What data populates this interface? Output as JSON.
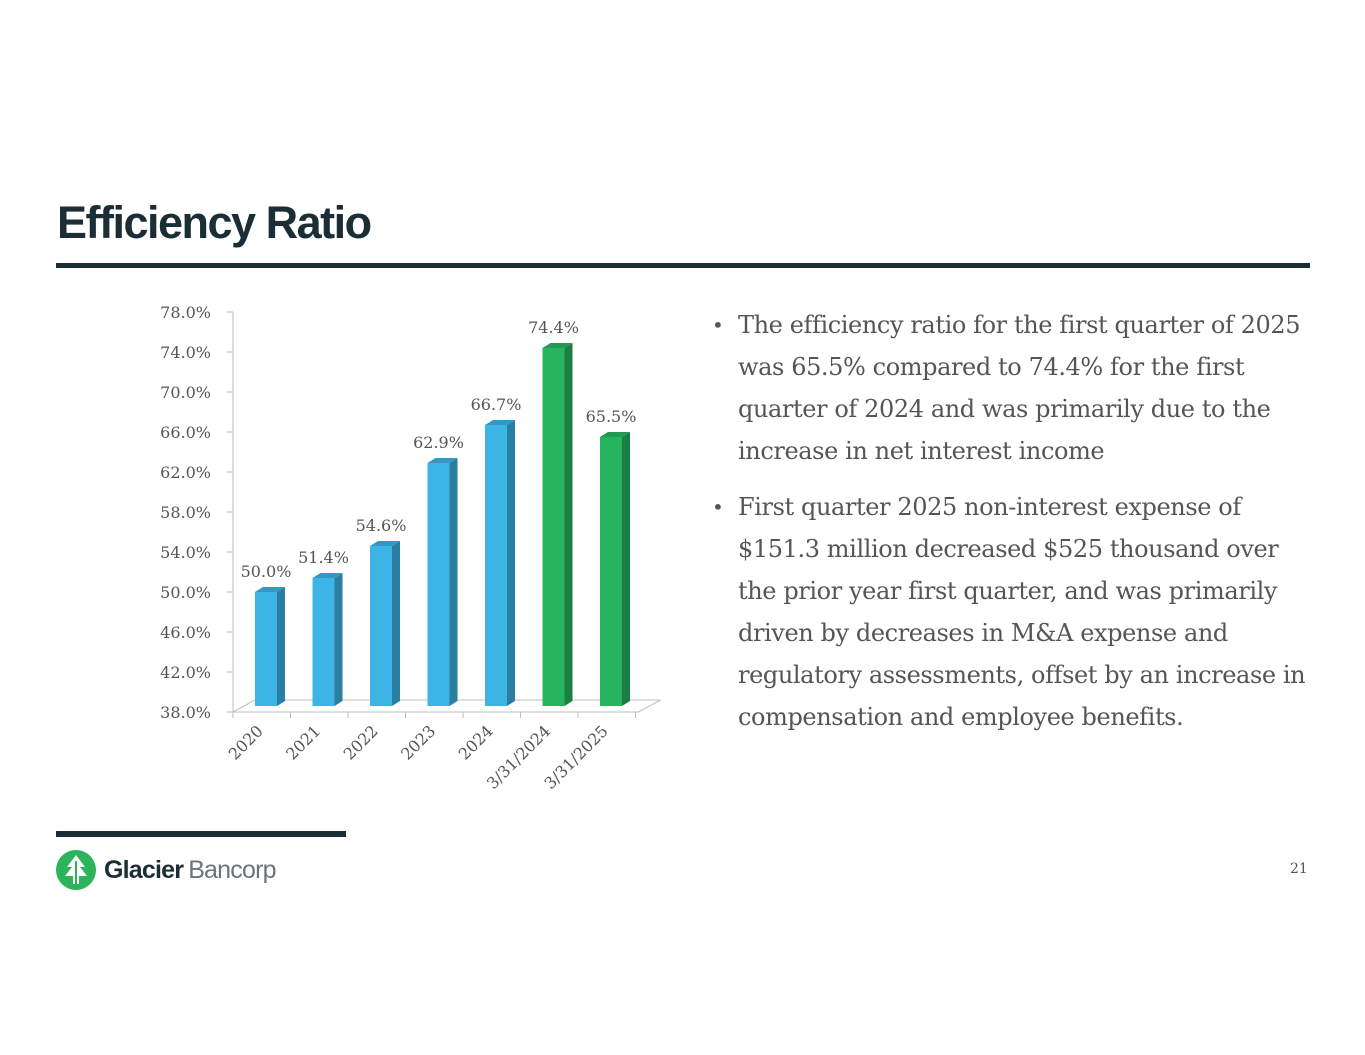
{
  "slide": {
    "title": "Efficiency Ratio",
    "page_number": "21"
  },
  "bullets": [
    "The efficiency ratio for the first quarter of 2025 was 65.5% compared to 74.4% for the first quarter of 2024 and was primarily due to the increase in net interest income",
    "First quarter 2025 non-interest expense of $151.3 million decreased $525 thousand over the prior year first quarter, and was primarily driven by decreases in M&A expense and regulatory assessments, offset by an increase in compensation and employee benefits."
  ],
  "logo": {
    "name_bold": "Glacier",
    "name_light": "Bancorp",
    "icon": "tree-icon",
    "color": "#2db45b"
  },
  "chart_data": {
    "type": "bar",
    "categories": [
      "2020",
      "2021",
      "2022",
      "2023",
      "2024",
      "3/31/2024",
      "3/31/2025"
    ],
    "values": [
      50.0,
      51.4,
      54.6,
      62.9,
      66.7,
      74.4,
      65.5
    ],
    "data_labels": [
      "50.0%",
      "51.4%",
      "54.6%",
      "62.9%",
      "66.7%",
      "74.4%",
      "65.5%"
    ],
    "bar_colors": [
      "#3cb4e6",
      "#3cb4e6",
      "#3cb4e6",
      "#3cb4e6",
      "#3cb4e6",
      "#27b45f",
      "#27b45f"
    ],
    "ylim": [
      38.0,
      78.0
    ],
    "yticks": [
      38.0,
      42.0,
      46.0,
      50.0,
      54.0,
      58.0,
      62.0,
      66.0,
      70.0,
      74.0,
      78.0
    ],
    "ytick_labels": [
      "38.0%",
      "42.0%",
      "46.0%",
      "50.0%",
      "54.0%",
      "58.0%",
      "62.0%",
      "66.0%",
      "70.0%",
      "74.0%",
      "78.0%"
    ],
    "title": "",
    "xlabel": "",
    "ylabel": "",
    "grid": false,
    "legend": "none"
  }
}
